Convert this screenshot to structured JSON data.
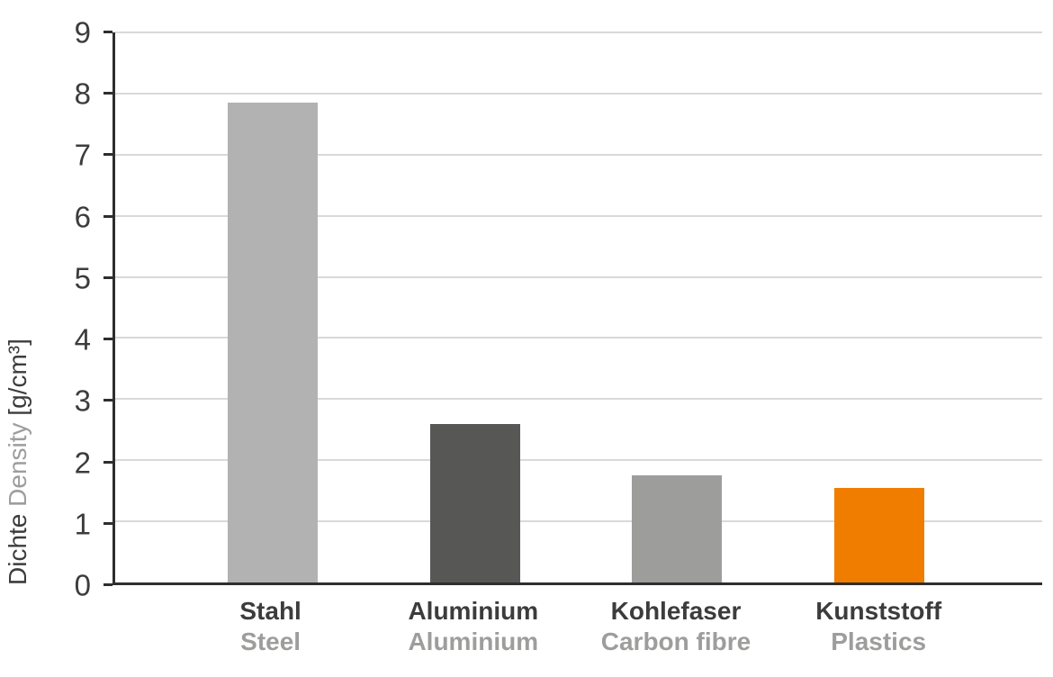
{
  "chart_data": {
    "type": "bar",
    "title": "",
    "ylabel_de": "Dichte",
    "ylabel_en": "Density",
    "ylabel_unit": "[g/cm³]",
    "ylim": [
      0,
      9
    ],
    "yticks": [
      0,
      1,
      2,
      3,
      4,
      5,
      6,
      7,
      8,
      9
    ],
    "grid": "horizontal",
    "legend": "none",
    "categories": [
      {
        "label_de": "Stahl",
        "label_en": "Steel"
      },
      {
        "label_de": "Aluminium",
        "label_en": "Aluminium"
      },
      {
        "label_de": "Kohlefaser",
        "label_en": "Carbon fibre"
      },
      {
        "label_de": "Kunststoff",
        "label_en": "Plastics"
      }
    ],
    "values": [
      7.85,
      2.6,
      1.75,
      1.55
    ],
    "bar_colors": [
      "#b2b2b2",
      "#575756",
      "#9d9d9c",
      "#f07d00"
    ],
    "colors": {
      "axis": "#2e2e2e",
      "grid": "#d9d9d9",
      "label_primary": "#3c3c3c",
      "label_secondary": "#9d9d9c",
      "background": "#ffffff"
    }
  }
}
